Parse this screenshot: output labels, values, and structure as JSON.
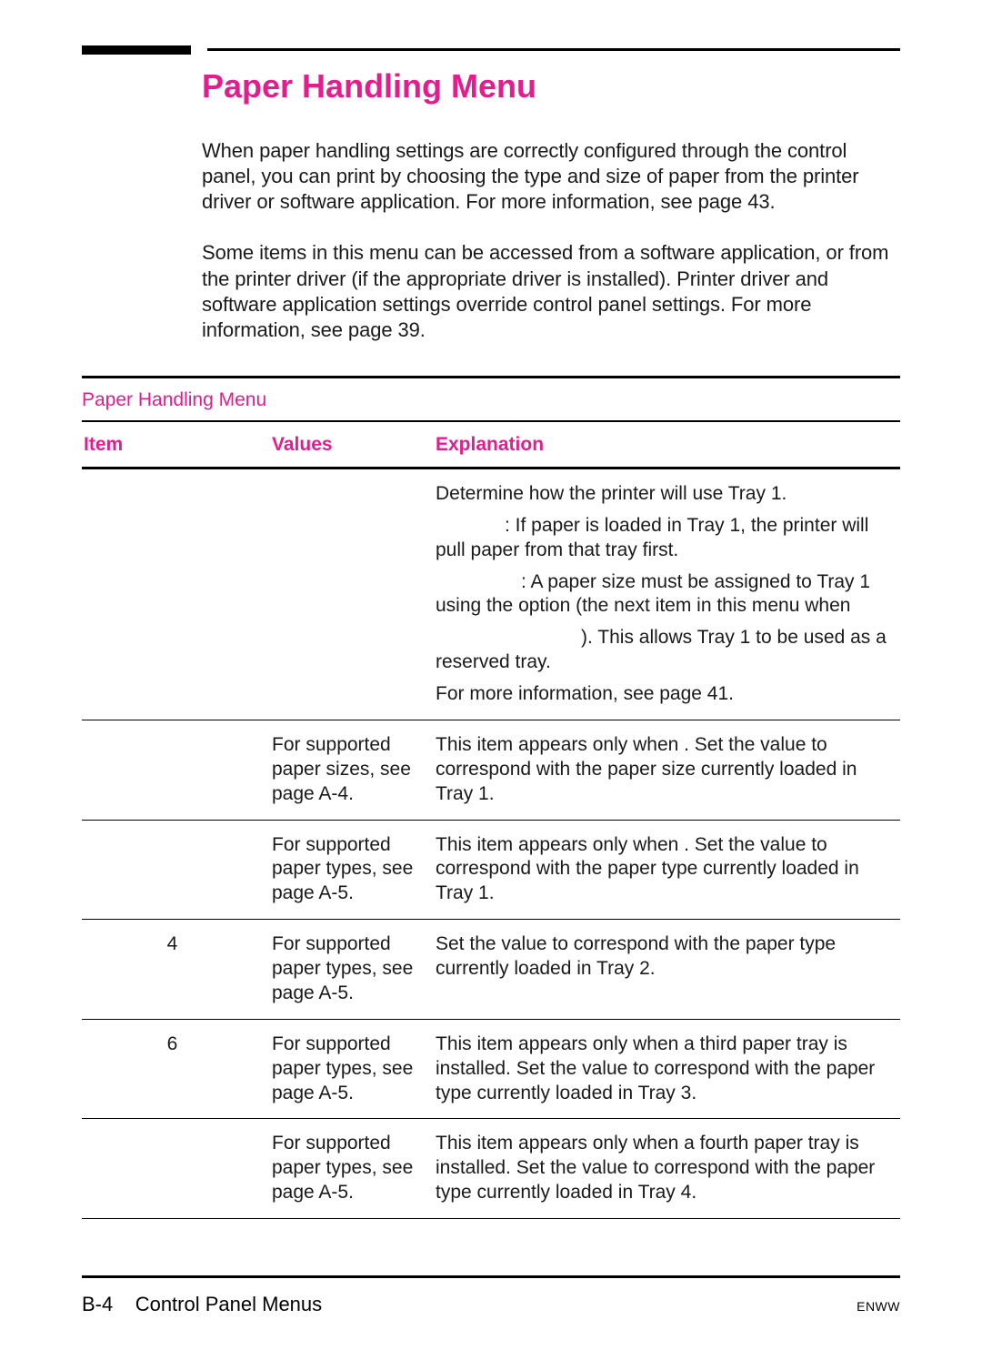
{
  "colors": {
    "accent": "#e21d8d",
    "text": "#1a1a1a",
    "rule": "#000000",
    "background": "#ffffff"
  },
  "title": "Paper Handling Menu",
  "paragraphs": {
    "p1": "When paper handling settings are correctly configured through the control panel, you can print by choosing the type and size of paper from the printer driver or software application. For more information, see page 43.",
    "p2": "Some items in this menu can be accessed from a software application, or from the printer driver (if the appropriate driver is installed). Printer driver and software application settings override control panel settings. For more information, see page 39."
  },
  "table": {
    "caption": "Paper Handling Menu",
    "headers": {
      "item": "Item",
      "values": "Values",
      "explanation": "Explanation"
    },
    "rows": [
      {
        "item": "",
        "values": "",
        "explanation": [
          "Determine how the printer will use Tray 1.",
          ": If paper is loaded in Tray 1, the printer will pull paper from that tray first.",
          ": A paper size must be assigned to Tray 1 using the                           option (the next item in this menu when",
          "). This allows Tray 1 to be used as a reserved tray.",
          "For more information, see page 41."
        ]
      },
      {
        "item": "",
        "values": "For supported paper sizes, see page A-4.",
        "explanation": [
          "This item appears only when                               . Set the value to correspond with the paper size currently loaded in Tray 1."
        ]
      },
      {
        "item": "",
        "values": "For supported paper types, see page A-5.",
        "explanation": [
          "This item appears only when                               . Set the value to correspond with the paper type currently loaded in Tray 1."
        ]
      },
      {
        "item": "4",
        "values": "For supported paper types, see page A-5.",
        "explanation": [
          "Set the value to correspond with the paper type currently loaded in Tray 2."
        ]
      },
      {
        "item": "6",
        "values": "For supported paper types, see page A-5.",
        "explanation": [
          "This item appears only when a third paper tray is installed. Set the value to correspond with the paper type currently loaded in Tray 3."
        ]
      },
      {
        "item": "",
        "values": "For supported paper types, see page A-5.",
        "explanation": [
          "This item appears only when a fourth paper tray is installed. Set the value to correspond with the paper type currently loaded in Tray 4."
        ]
      }
    ]
  },
  "footer": {
    "left_prefix": "B-4",
    "left_text": "Control Panel Menus",
    "right": "ENWW"
  }
}
